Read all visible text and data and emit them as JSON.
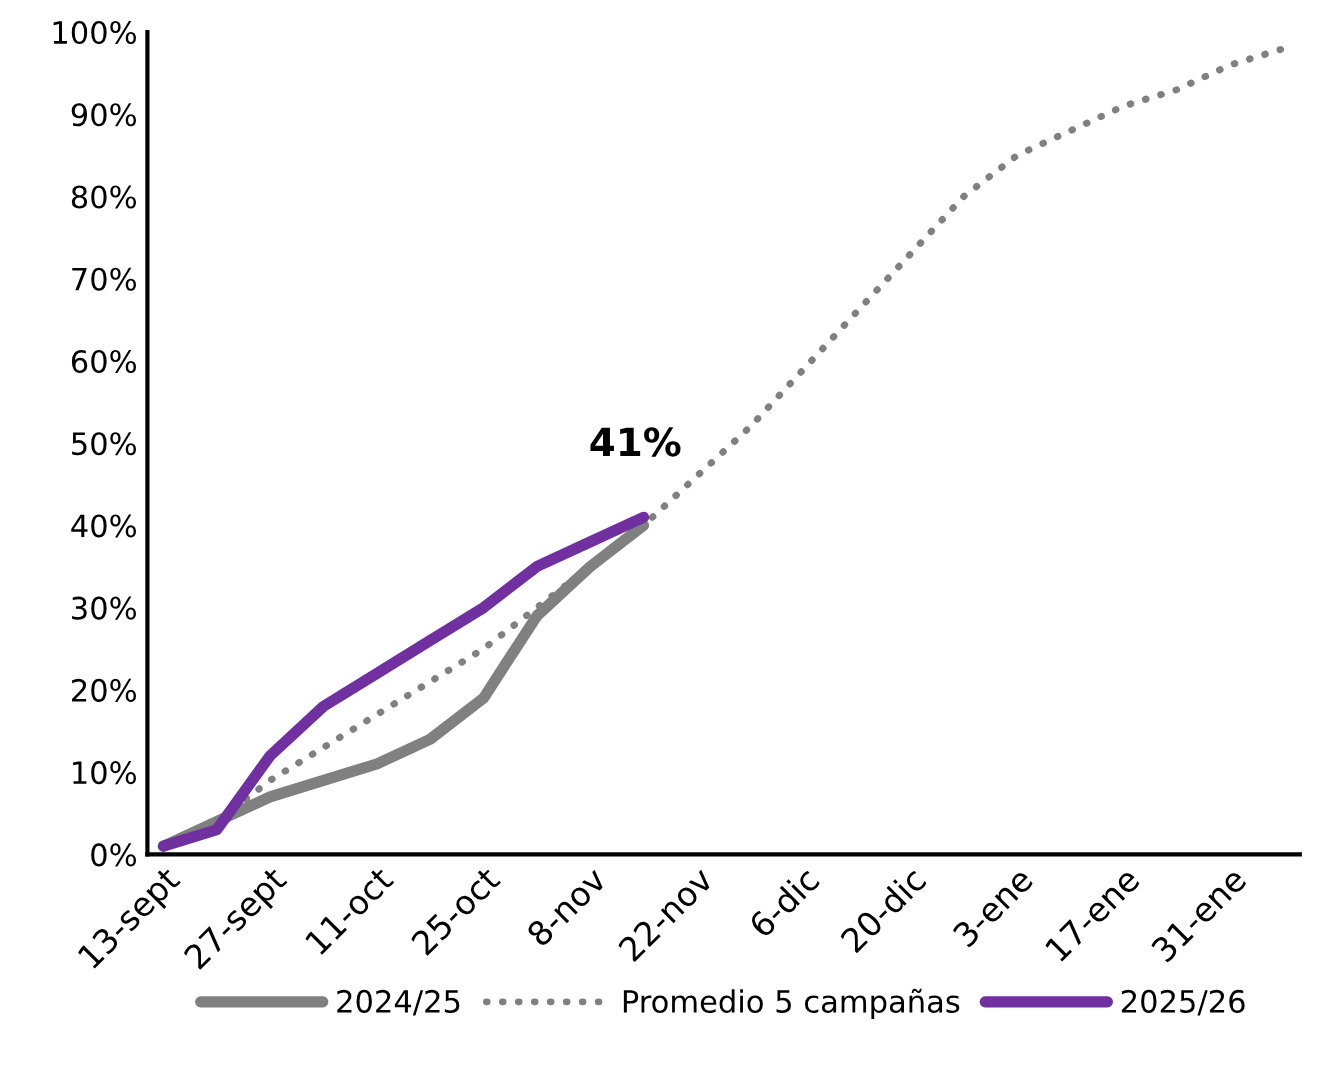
{
  "chart_data": {
    "type": "line",
    "categories": [
      "13-sept",
      null,
      "27-sept",
      null,
      "11-oct",
      null,
      "25-oct",
      null,
      "8-nov",
      null,
      "22-nov",
      null,
      "6-dic",
      null,
      "20-dic",
      null,
      "3-ene",
      null,
      "17-ene",
      null,
      "31-ene",
      null
    ],
    "series": [
      {
        "name": "2024/25",
        "color": "#808080",
        "line_style": "solid",
        "values": [
          1,
          4,
          7,
          9,
          11,
          14,
          19,
          29,
          35,
          40,
          null,
          null,
          null,
          null,
          null,
          null,
          null,
          null,
          null,
          null,
          null,
          null
        ]
      },
      {
        "name": "Promedio 5 campañas",
        "color": "#808080",
        "line_style": "dotted",
        "values": [
          1,
          4,
          9,
          13,
          17,
          21,
          25,
          30,
          35,
          40,
          46,
          52,
          59,
          66,
          73,
          80,
          85,
          88,
          91,
          93,
          96,
          98
        ]
      },
      {
        "name": "2025/26",
        "color": "#7030a0",
        "line_style": "solid",
        "values": [
          1,
          3,
          12,
          18,
          22,
          26,
          30,
          35,
          38,
          41,
          null,
          null,
          null,
          null,
          null,
          null,
          null,
          null,
          null,
          null,
          null,
          null
        ]
      }
    ],
    "ylim": [
      0,
      100
    ],
    "yticks": [
      {
        "value": 0,
        "label": "0%"
      },
      {
        "value": 10,
        "label": "10%"
      },
      {
        "value": 20,
        "label": "20%"
      },
      {
        "value": 30,
        "label": "30%"
      },
      {
        "value": 40,
        "label": "40%"
      },
      {
        "value": 50,
        "label": "50%"
      },
      {
        "value": 60,
        "label": "60%"
      },
      {
        "value": 70,
        "label": "70%"
      },
      {
        "value": 80,
        "label": "80%"
      },
      {
        "value": 90,
        "label": "90%"
      },
      {
        "value": 100,
        "label": "100%"
      }
    ],
    "annotations": [
      {
        "text": "41%",
        "y": 41
      }
    ],
    "grid": false,
    "legend": "bottom",
    "marker": "none"
  }
}
